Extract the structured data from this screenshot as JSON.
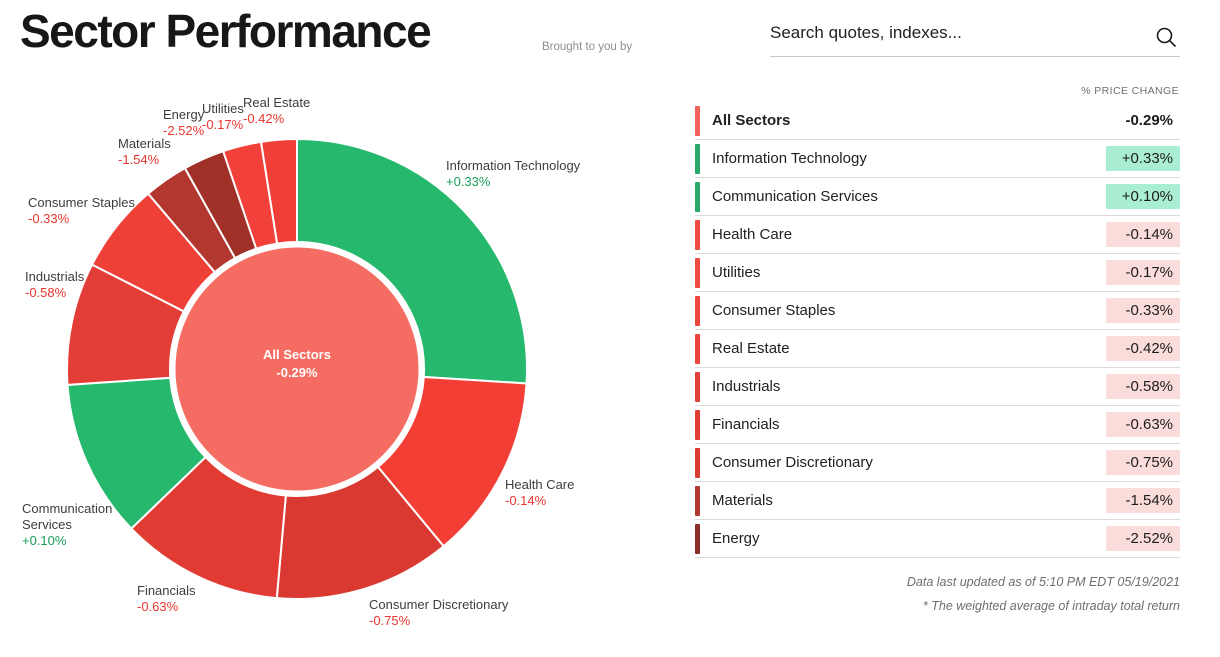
{
  "header": {
    "title": "Sector Performance",
    "brought_by": "Brought to you by",
    "search": {
      "placeholder": "Search quotes, indexes..."
    }
  },
  "chart_data": {
    "type": "donut",
    "title": "Sector Performance",
    "legend_position": "none",
    "center": {
      "label": "All Sectors",
      "value": "-0.29%",
      "color": "#f56c62"
    },
    "sectors": [
      {
        "name": "Information Technology",
        "change": "+0.33%",
        "weight_pct": 26.0,
        "color": "#26b96e",
        "direction": "up"
      },
      {
        "name": "Health Care",
        "change": "-0.14%",
        "weight_pct": 13.0,
        "color": "#f33e36",
        "direction": "down"
      },
      {
        "name": "Consumer Discretionary",
        "change": "-0.75%",
        "weight_pct": 12.4,
        "color": "#d93930",
        "direction": "down"
      },
      {
        "name": "Financials",
        "change": "-0.63%",
        "weight_pct": 11.4,
        "color": "#e13b33",
        "direction": "down"
      },
      {
        "name": "Communication Services",
        "change": "+0.10%",
        "weight_pct": 11.1,
        "color": "#26b96e",
        "direction": "up"
      },
      {
        "name": "Industrials",
        "change": "-0.58%",
        "weight_pct": 8.6,
        "color": "#e23e37",
        "direction": "down"
      },
      {
        "name": "Consumer Staples",
        "change": "-0.33%",
        "weight_pct": 6.3,
        "color": "#ef4038",
        "direction": "down"
      },
      {
        "name": "Materials",
        "change": "-1.54%",
        "weight_pct": 3.1,
        "color": "#b2372f",
        "direction": "down"
      },
      {
        "name": "Energy",
        "change": "-2.52%",
        "weight_pct": 2.9,
        "color": "#a03028",
        "direction": "down"
      },
      {
        "name": "Utilities",
        "change": "-0.17%",
        "weight_pct": 2.7,
        "color": "#f2413a",
        "direction": "down"
      },
      {
        "name": "Real Estate",
        "change": "-0.42%",
        "weight_pct": 2.5,
        "color": "#ef3f38",
        "direction": "down"
      }
    ]
  },
  "table": {
    "header": "% PRICE CHANGE",
    "chip_colors": {
      "up": "#a9edd2",
      "down": "#fadcda"
    },
    "rows": [
      {
        "name": "All Sectors",
        "value": "-0.29%",
        "bar_color": "#f2625b",
        "chip": "none",
        "bold": true
      },
      {
        "name": "Information Technology",
        "value": "+0.33%",
        "bar_color": "#26a969",
        "chip": "up",
        "bold": false
      },
      {
        "name": "Communication Services",
        "value": "+0.10%",
        "bar_color": "#26a969",
        "chip": "up",
        "bold": false
      },
      {
        "name": "Health Care",
        "value": "-0.14%",
        "bar_color": "#ef4b43",
        "chip": "down",
        "bold": false
      },
      {
        "name": "Utilities",
        "value": "-0.17%",
        "bar_color": "#ef4b43",
        "chip": "down",
        "bold": false
      },
      {
        "name": "Consumer Staples",
        "value": "-0.33%",
        "bar_color": "#ee463e",
        "chip": "down",
        "bold": false
      },
      {
        "name": "Real Estate",
        "value": "-0.42%",
        "bar_color": "#ec433b",
        "chip": "down",
        "bold": false
      },
      {
        "name": "Industrials",
        "value": "-0.58%",
        "bar_color": "#e2413a",
        "chip": "down",
        "bold": false
      },
      {
        "name": "Financials",
        "value": "-0.63%",
        "bar_color": "#e03d35",
        "chip": "down",
        "bold": false
      },
      {
        "name": "Consumer Discretionary",
        "value": "-0.75%",
        "bar_color": "#d93a32",
        "chip": "down",
        "bold": false
      },
      {
        "name": "Materials",
        "value": "-1.54%",
        "bar_color": "#b23931",
        "chip": "down",
        "bold": false
      },
      {
        "name": "Energy",
        "value": "-2.52%",
        "bar_color": "#8e2e28",
        "chip": "down",
        "bold": false
      }
    ]
  },
  "footer": {
    "updated": "Data last updated as of 5:10 PM EDT 05/19/2021",
    "note": "* The weighted average of intraday total return"
  }
}
